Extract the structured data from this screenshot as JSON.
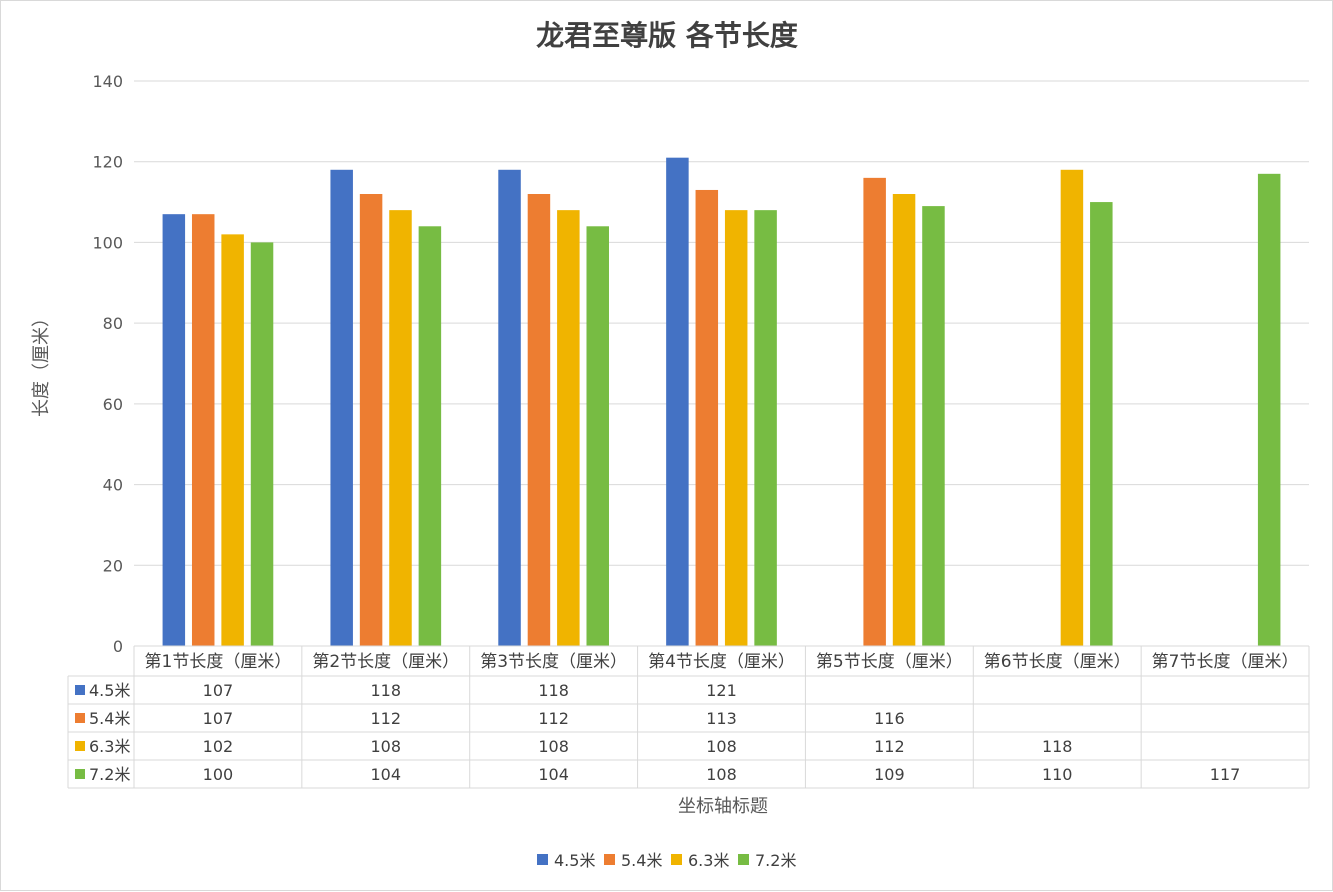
{
  "chart_data": {
    "type": "bar",
    "title": "龙君至尊版 各节长度",
    "xlabel": "坐标轴标题",
    "ylabel": "长度（厘米）",
    "ylim": [
      0,
      140
    ],
    "yticks": [
      0,
      20,
      40,
      60,
      80,
      100,
      120,
      140
    ],
    "grid": true,
    "legend_position": "bottom",
    "data_table": true,
    "categories": [
      "第1节长度（厘米）",
      "第2节长度（厘米）",
      "第3节长度（厘米）",
      "第4节长度（厘米）",
      "第5节长度（厘米）",
      "第6节长度（厘米）",
      "第7节长度（厘米）"
    ],
    "series": [
      {
        "name": "4.5米",
        "color": "#4472c4",
        "values": [
          107,
          118,
          118,
          121,
          null,
          null,
          null
        ]
      },
      {
        "name": "5.4米",
        "color": "#ed7d31",
        "values": [
          107,
          112,
          112,
          113,
          116,
          null,
          null
        ]
      },
      {
        "name": "6.3米",
        "color": "#f0b400",
        "values": [
          102,
          108,
          108,
          108,
          112,
          118,
          null
        ]
      },
      {
        "name": "7.2米",
        "color": "#77bc43",
        "values": [
          100,
          104,
          104,
          108,
          109,
          110,
          117
        ]
      }
    ]
  }
}
